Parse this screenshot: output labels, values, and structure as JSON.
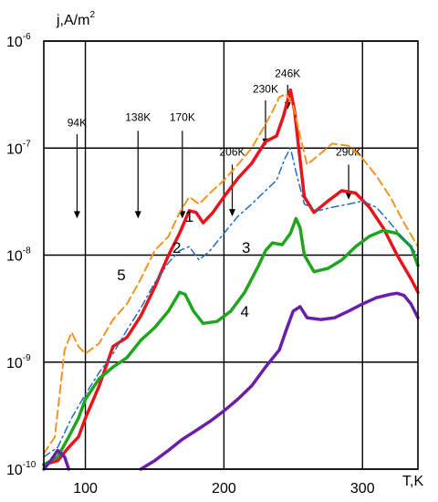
{
  "chart_data": {
    "type": "line",
    "y_scale": "log",
    "xlim": [
      70,
      340
    ],
    "ylim": [
      1e-10,
      1e-06
    ],
    "grid": true,
    "ylabel_html": [
      "j,A/m",
      "2"
    ],
    "xlabel": "T,K",
    "x_ticks": [
      {
        "value": 100,
        "label": "100"
      },
      {
        "value": 200,
        "label": "200"
      },
      {
        "value": 300,
        "label": "300"
      }
    ],
    "y_ticks": [
      {
        "value": 1e-10,
        "base": "10",
        "exp": "-10"
      },
      {
        "value": 1e-09,
        "base": "10",
        "exp": "-9"
      },
      {
        "value": 1e-08,
        "base": "10",
        "exp": "-8"
      },
      {
        "value": 1e-07,
        "base": "10",
        "exp": "-7"
      },
      {
        "value": 1e-06,
        "base": "10",
        "exp": "-6"
      }
    ],
    "annotations": [
      {
        "text": "94K",
        "x": 94,
        "text_at_y": 1.6e-07,
        "arrow_y": [
          1.35e-07,
          2.2e-08
        ]
      },
      {
        "text": "138K",
        "x": 138,
        "text_at_y": 1.8e-07,
        "arrow_y": [
          1.45e-07,
          2.2e-08
        ]
      },
      {
        "text": "170K",
        "x": 170,
        "text_at_y": 1.8e-07,
        "arrow_y": [
          1.45e-07,
          2.2e-08
        ]
      },
      {
        "text": "206K",
        "x": 206,
        "text_at_y": 8.5e-08,
        "arrow_y": [
          7e-08,
          2.3e-08
        ]
      },
      {
        "text": "230K",
        "x": 230,
        "text_at_y": 3.3e-07,
        "arrow_y": [
          2.8e-07,
          1.05e-07
        ]
      },
      {
        "text": "246K",
        "x": 246,
        "text_at_y": 4.6e-07,
        "arrow_y": [
          3.9e-07,
          2.3e-07
        ]
      },
      {
        "text": "290K",
        "x": 290,
        "text_at_y": 8.5e-08,
        "arrow_y": [
          7e-08,
          3.3e-08
        ]
      }
    ],
    "series": [
      {
        "name": "1",
        "color": "#e8141b",
        "dash": "solid",
        "width": 3.5,
        "label_at": [
          175,
          2.05e-08
        ],
        "points": [
          [
            70,
            1.1e-10
          ],
          [
            80,
            1.2e-10
          ],
          [
            88,
            1.6e-10
          ],
          [
            95,
            2e-10
          ],
          [
            100,
            3e-10
          ],
          [
            110,
            6e-10
          ],
          [
            120,
            1.4e-09
          ],
          [
            130,
            1.7e-09
          ],
          [
            140,
            2.7e-09
          ],
          [
            150,
            5e-09
          ],
          [
            160,
            1e-08
          ],
          [
            168,
            1.6e-08
          ],
          [
            175,
            2.6e-08
          ],
          [
            180,
            2.5e-08
          ],
          [
            185,
            2e-08
          ],
          [
            192,
            2.5e-08
          ],
          [
            200,
            3.5e-08
          ],
          [
            210,
            5.2e-08
          ],
          [
            220,
            7.2e-08
          ],
          [
            230,
            1.15e-07
          ],
          [
            238,
            1.3e-07
          ],
          [
            243,
            2e-07
          ],
          [
            248,
            3.5e-07
          ],
          [
            251,
            2.2e-07
          ],
          [
            254,
            1e-07
          ],
          [
            258,
            3.5e-08
          ],
          [
            265,
            2.5e-08
          ],
          [
            275,
            3.2e-08
          ],
          [
            285,
            4e-08
          ],
          [
            295,
            3.8e-08
          ],
          [
            305,
            2.8e-08
          ],
          [
            315,
            1.8e-08
          ],
          [
            325,
            1e-08
          ],
          [
            335,
            6e-09
          ],
          [
            340,
            4.5e-09
          ]
        ]
      },
      {
        "name": "2",
        "color": "#1fa51f",
        "dash": "solid",
        "width": 3.5,
        "label_at": [
          166,
          1.05e-08
        ],
        "points": [
          [
            70,
            1.1e-10
          ],
          [
            80,
            1.3e-10
          ],
          [
            88,
            2e-10
          ],
          [
            95,
            3e-10
          ],
          [
            100,
            4.5e-10
          ],
          [
            110,
            7e-10
          ],
          [
            120,
            9e-10
          ],
          [
            130,
            1.1e-09
          ],
          [
            140,
            1.6e-09
          ],
          [
            150,
            2.1e-09
          ],
          [
            160,
            3e-09
          ],
          [
            168,
            4.5e-09
          ],
          [
            172,
            4.3e-09
          ],
          [
            178,
            3e-09
          ],
          [
            185,
            2.3e-09
          ],
          [
            195,
            2.4e-09
          ],
          [
            205,
            3e-09
          ],
          [
            215,
            4.5e-09
          ],
          [
            225,
            8e-09
          ],
          [
            230,
            1.1e-08
          ],
          [
            235,
            1.3e-08
          ],
          [
            242,
            1.25e-08
          ],
          [
            248,
            1.6e-08
          ],
          [
            252,
            2.2e-08
          ],
          [
            255,
            1.8e-08
          ],
          [
            258,
            1e-08
          ],
          [
            265,
            7e-09
          ],
          [
            275,
            7.5e-09
          ],
          [
            285,
            9e-09
          ],
          [
            295,
            1.2e-08
          ],
          [
            305,
            1.5e-08
          ],
          [
            315,
            1.7e-08
          ],
          [
            325,
            1.6e-08
          ],
          [
            335,
            1.2e-08
          ],
          [
            340,
            8e-09
          ]
        ]
      },
      {
        "name": "3",
        "color": "#1f6fbf",
        "dash": "dashdot",
        "width": 1.5,
        "label_at": [
          216,
          1.05e-08
        ],
        "points": [
          [
            70,
            1.3e-10
          ],
          [
            80,
            1.6e-10
          ],
          [
            90,
            3e-10
          ],
          [
            100,
            5e-10
          ],
          [
            110,
            8e-10
          ],
          [
            120,
            1.2e-09
          ],
          [
            130,
            2e-09
          ],
          [
            140,
            3.2e-09
          ],
          [
            150,
            5.5e-09
          ],
          [
            160,
            8.5e-09
          ],
          [
            168,
            1.1e-08
          ],
          [
            175,
            1.2e-08
          ],
          [
            182,
            9e-09
          ],
          [
            190,
            1.1e-08
          ],
          [
            200,
            1.6e-08
          ],
          [
            210,
            2.3e-08
          ],
          [
            220,
            3e-08
          ],
          [
            230,
            4e-08
          ],
          [
            238,
            5e-08
          ],
          [
            244,
            8e-08
          ],
          [
            248,
            1e-07
          ],
          [
            252,
            6e-08
          ],
          [
            258,
            3e-08
          ],
          [
            268,
            2.6e-08
          ],
          [
            278,
            2.8e-08
          ],
          [
            290,
            3e-08
          ],
          [
            300,
            3.2e-08
          ],
          [
            310,
            2.8e-08
          ],
          [
            320,
            2e-08
          ],
          [
            330,
            1.4e-08
          ],
          [
            340,
            1e-08
          ]
        ]
      },
      {
        "name": "5",
        "color": "#f5941c",
        "dash": "dashed",
        "width": 2,
        "label_at": [
          126,
          5.8e-09
        ],
        "points": [
          [
            70,
            1.4e-10
          ],
          [
            78,
            2e-10
          ],
          [
            85,
            1.3e-09
          ],
          [
            90,
            1.9e-09
          ],
          [
            95,
            1.4e-09
          ],
          [
            100,
            1.2e-09
          ],
          [
            110,
            1.5e-09
          ],
          [
            120,
            2.5e-09
          ],
          [
            130,
            3.5e-09
          ],
          [
            140,
            6e-09
          ],
          [
            150,
            1.1e-08
          ],
          [
            160,
            1.5e-08
          ],
          [
            168,
            2.5e-08
          ],
          [
            175,
            3.5e-08
          ],
          [
            182,
            3e-08
          ],
          [
            190,
            3.8e-08
          ],
          [
            200,
            5e-08
          ],
          [
            210,
            7e-08
          ],
          [
            220,
            1e-07
          ],
          [
            228,
            1.5e-07
          ],
          [
            235,
            2.2e-07
          ],
          [
            240,
            3e-07
          ],
          [
            245,
            3.2e-07
          ],
          [
            250,
            2.5e-07
          ],
          [
            255,
            1.3e-07
          ],
          [
            260,
            7e-08
          ],
          [
            268,
            8.5e-08
          ],
          [
            278,
            1.1e-07
          ],
          [
            290,
            1.05e-07
          ],
          [
            300,
            8e-08
          ],
          [
            310,
            5.5e-08
          ],
          [
            320,
            3.5e-08
          ],
          [
            330,
            2e-08
          ],
          [
            340,
            1.2e-08
          ]
        ]
      },
      {
        "name": "4",
        "color": "#6a1fa8",
        "dash": "solid",
        "width": 3.5,
        "label_at": [
          215,
          2.65e-09
        ],
        "points_segments": [
          [
            [
              70,
              1e-10
            ],
            [
              75,
              1.2e-10
            ],
            [
              80,
              1.5e-10
            ],
            [
              85,
              1.3e-10
            ],
            [
              88,
              1e-10
            ]
          ],
          [
            [
              140,
              1e-10
            ],
            [
              150,
              1.2e-10
            ],
            [
              160,
              1.5e-10
            ],
            [
              170,
              1.9e-10
            ],
            [
              180,
              2.3e-10
            ],
            [
              190,
              2.8e-10
            ],
            [
              200,
              3.5e-10
            ],
            [
              210,
              4.5e-10
            ],
            [
              220,
              6e-10
            ],
            [
              230,
              9e-10
            ],
            [
              240,
              1.3e-09
            ],
            [
              245,
              2e-09
            ],
            [
              250,
              3e-09
            ],
            [
              255,
              3.3e-09
            ],
            [
              260,
              2.6e-09
            ],
            [
              270,
              2.5e-09
            ],
            [
              280,
              2.6e-09
            ],
            [
              290,
              3e-09
            ],
            [
              300,
              3.5e-09
            ],
            [
              310,
              4e-09
            ],
            [
              320,
              4.3e-09
            ],
            [
              325,
              4.4e-09
            ],
            [
              330,
              4.2e-09
            ],
            [
              335,
              3.5e-09
            ],
            [
              340,
              2.6e-09
            ]
          ]
        ]
      }
    ]
  }
}
